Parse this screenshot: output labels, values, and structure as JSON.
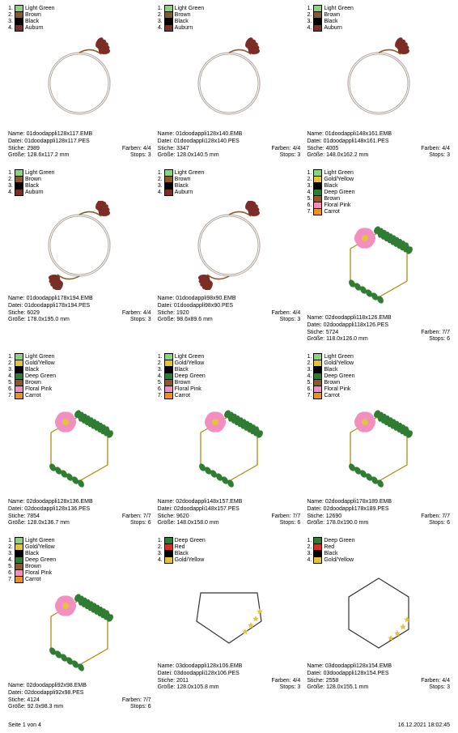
{
  "colors": {
    "lightGreen": "#8fd17e",
    "brown": "#8b5a2b",
    "black": "#000000",
    "auburn": "#7b2d26",
    "goldYellow": "#e6c23a",
    "deepGreen": "#2e7d32",
    "floralPink": "#f08fc0",
    "carrot": "#ed9121",
    "red": "#d32f2f"
  },
  "labels": {
    "name": "Name:",
    "datei": "Datei:",
    "stiche": "Stiche:",
    "farben": "Farben:",
    "groesse": "Größe:",
    "stops": "Stops:"
  },
  "legendSets": {
    "A": [
      {
        "n": 1,
        "c": "lightGreen",
        "t": "Light Green"
      },
      {
        "n": 2,
        "c": "brown",
        "t": "Brown"
      },
      {
        "n": 3,
        "c": "black",
        "t": "Black"
      },
      {
        "n": 4,
        "c": "auburn",
        "t": "Auburn"
      }
    ],
    "B": [
      {
        "n": 1,
        "c": "lightGreen",
        "t": "Light Green"
      },
      {
        "n": 2,
        "c": "goldYellow",
        "t": "Gold/Yellow"
      },
      {
        "n": 3,
        "c": "black",
        "t": "Black"
      },
      {
        "n": 4,
        "c": "deepGreen",
        "t": "Deep Green"
      },
      {
        "n": 5,
        "c": "brown",
        "t": "Brown"
      },
      {
        "n": 6,
        "c": "floralPink",
        "t": "Floral Pink"
      },
      {
        "n": 7,
        "c": "carrot",
        "t": "Carrot"
      }
    ],
    "C": [
      {
        "n": 1,
        "c": "deepGreen",
        "t": "Deep Green"
      },
      {
        "n": 2,
        "c": "red",
        "t": "Red"
      },
      {
        "n": 3,
        "c": "black",
        "t": "Black"
      },
      {
        "n": 4,
        "c": "goldYellow",
        "t": "Gold/Yellow"
      }
    ]
  },
  "items": [
    {
      "legend": "A",
      "shape": "ring-tl",
      "name": "01doodappli128x117.EMB",
      "datei": "01doodappli128x117.PES",
      "stiche": "2989",
      "farben": "4/4",
      "groesse": "128.6x117.2 mm",
      "stops": "3"
    },
    {
      "legend": "A",
      "shape": "ring-tl",
      "name": "01doodappli128x140.EMB",
      "datei": "01doodappli128x140.PES",
      "stiche": "3347",
      "farben": "4/4",
      "groesse": "128.0x140.5 mm",
      "stops": "3"
    },
    {
      "legend": "A",
      "shape": "ring-tl",
      "name": "01doodappli148x161.EMB",
      "datei": "01doodappli148x161.PES",
      "stiche": "4005",
      "farben": "4/4",
      "groesse": "148.0x162.2 mm",
      "stops": "3"
    },
    {
      "legend": "A",
      "shape": "ring-both",
      "name": "01doodappli178x194.EMB",
      "datei": "01doodappli178x194.PES",
      "stiche": "6029",
      "farben": "4/4",
      "groesse": "178.0x195.0 mm",
      "stops": "3"
    },
    {
      "legend": "A",
      "shape": "ring-both",
      "name": "01doodappli98x90.EMB",
      "datei": "01doodappli98x90.PES",
      "stiche": "1920",
      "farben": "4/4",
      "groesse": "98.6x89.6 mm",
      "stops": "3"
    },
    {
      "legend": "B",
      "shape": "hex-flower",
      "name": "02doodappli118x126.EMB",
      "datei": "02doodappli118x126.PES",
      "stiche": "5724",
      "farben": "7/7",
      "groesse": "118.0x126.0 mm",
      "stops": "6"
    },
    {
      "legend": "B",
      "shape": "hex-flower",
      "name": "02doodappli128x136.EMB",
      "datei": "02doodappli128x136.PES",
      "stiche": "7854",
      "farben": "7/7",
      "groesse": "128.0x136.7 mm",
      "stops": "6"
    },
    {
      "legend": "B",
      "shape": "hex-flower",
      "name": "02doodappli148x157.EMB",
      "datei": "02doodappli148x157.PES",
      "stiche": "9620",
      "farben": "7/7",
      "groesse": "148.0x158.0 mm",
      "stops": "6"
    },
    {
      "legend": "B",
      "shape": "hex-flower",
      "name": "02doodappli178x189.EMB",
      "datei": "02doodappli178x189.PES",
      "stiche": "12690",
      "farben": "7/7",
      "groesse": "178.0x190.0 mm",
      "stops": "6"
    },
    {
      "legend": "B",
      "shape": "hex-flower",
      "name": "02doodappli92x98.EMB",
      "datei": "02doodappli92x98.PES",
      "stiche": "4124",
      "farben": "7/7",
      "groesse": "92.0x98.3 mm",
      "stops": "6"
    },
    {
      "legend": "C",
      "shape": "pent-stars",
      "name": "03doodappli128x106.EMB",
      "datei": "03doodappli128x106.PES",
      "stiche": "2011",
      "farben": "4/4",
      "groesse": "128.0x105.8 mm",
      "stops": "3"
    },
    {
      "legend": "C",
      "shape": "hex-stars",
      "name": "03doodappli128x154.EMB",
      "datei": "03doodappli128x154.PES",
      "stiche": "2558",
      "farben": "4/4",
      "groesse": "128.0x155.1 mm",
      "stops": "3"
    }
  ],
  "footer": {
    "page": "Seite 1 von 4",
    "date": "16.12.2021 18:02:45"
  }
}
